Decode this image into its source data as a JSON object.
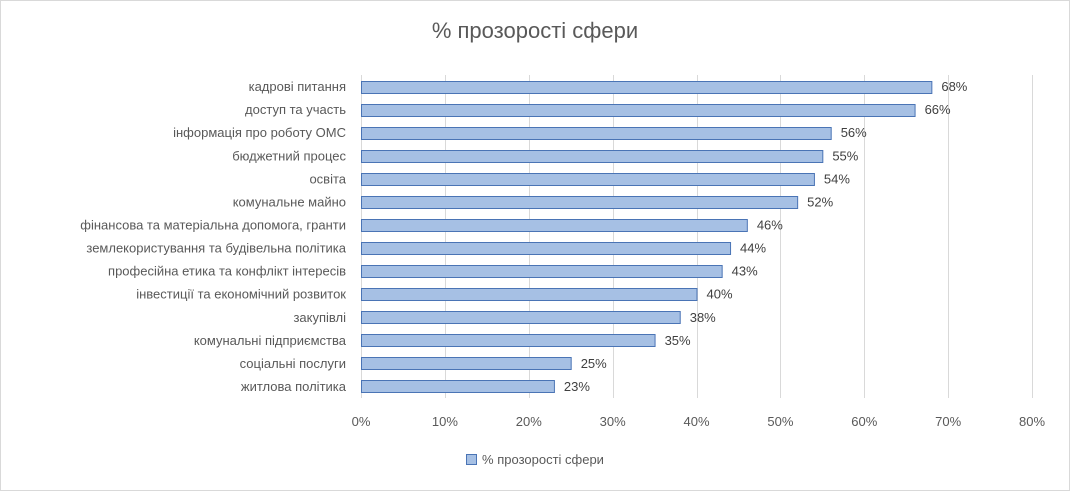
{
  "chart_data": {
    "type": "bar",
    "orientation": "horizontal",
    "title": "% прозорості сфери",
    "categories": [
      "кадрові питання",
      "доступ та участь",
      "інформація про роботу ОМС",
      "бюджетний процес",
      "освіта",
      "комунальне майно",
      "фінансова та матеріальна допомога, гранти",
      "землекористування та будівельна політика",
      "професійна етика та конфлікт інтересів",
      "інвестиції та економічний розвиток",
      "закупівлі",
      "комунальні підприємства",
      "соціальні послуги",
      "житлова політика"
    ],
    "series": [
      {
        "name": "% прозорості сфери",
        "values": [
          68,
          66,
          56,
          55,
          54,
          52,
          46,
          44,
          43,
          40,
          38,
          35,
          25,
          23
        ],
        "labels": [
          "68%",
          "66%",
          "56%",
          "55%",
          "54%",
          "52%",
          "46%",
          "44%",
          "43%",
          "40%",
          "38%",
          "35%",
          "25%",
          "23%"
        ]
      }
    ],
    "xlim": [
      0,
      80
    ],
    "x_ticks": [
      "0%",
      "10%",
      "20%",
      "30%",
      "40%",
      "50%",
      "60%",
      "70%",
      "80%"
    ],
    "grid": true,
    "legend_position": "bottom",
    "colors": {
      "bar_fill": "#a6c0e4",
      "bar_stroke": "#4a74b5",
      "grid": "#d9d9d9"
    }
  }
}
